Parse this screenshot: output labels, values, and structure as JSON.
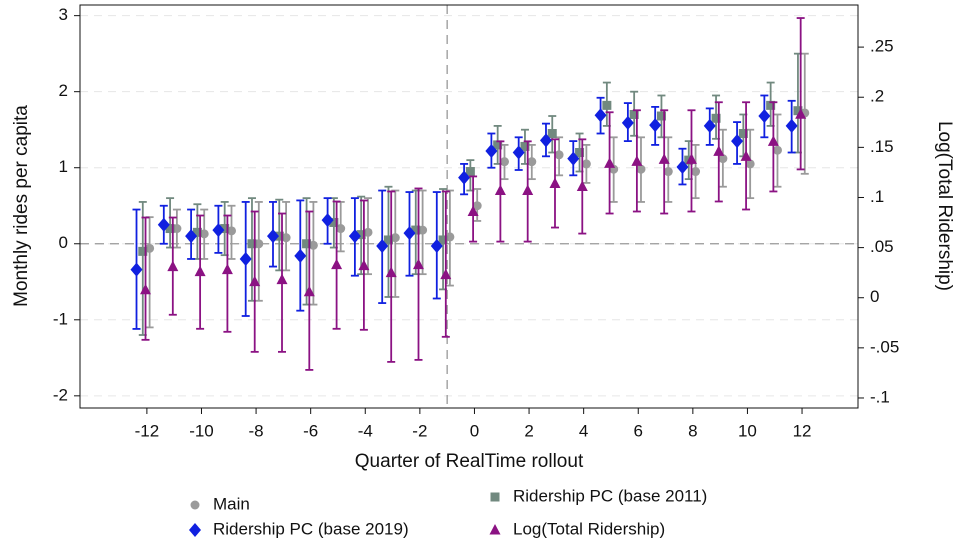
{
  "chart_data": {
    "type": "errorbar",
    "x_label": "Quarter of RealTime rollout",
    "y_label": "Monthly rides per capita",
    "y2_label": "Log(Total Ridership)",
    "x": [
      -12,
      -11,
      -10,
      -9,
      -8,
      -7,
      -6,
      -5,
      -4,
      -3,
      -2,
      -1,
      0,
      1,
      2,
      3,
      4,
      5,
      6,
      7,
      8,
      9,
      10,
      11,
      12
    ],
    "xlim": [
      -14.45,
      14.05
    ],
    "xticks": [
      -12,
      -10,
      -8,
      -6,
      -4,
      -2,
      0,
      2,
      4,
      6,
      8,
      10,
      12
    ],
    "ylim": [
      -2.16,
      3.14
    ],
    "yticks": [
      -2,
      -1,
      0,
      1,
      2,
      3
    ],
    "y2lim": [
      -0.11,
      0.292
    ],
    "y2ticks": [
      {
        "value": -0.1,
        "label": "-.1"
      },
      {
        "value": -0.05,
        "label": "-.05"
      },
      0,
      {
        "value": 0.05,
        "label": ".05"
      },
      {
        "value": 0.1,
        "label": ".1"
      },
      {
        "value": 0.15,
        "label": ".15"
      },
      {
        "value": 0.2,
        "label": ".2"
      },
      {
        "value": 0.25,
        "label": ".25"
      }
    ],
    "grid": true,
    "legend_position": "bottom",
    "series": [
      {
        "name": "Main",
        "color": "#9a9a9a",
        "marker": "circle",
        "values": [
          -0.06,
          0.2,
          0.13,
          0.17,
          0.0,
          0.08,
          -0.02,
          0.2,
          0.15,
          0.08,
          0.18,
          0.09,
          0.5,
          1.08,
          1.08,
          1.17,
          1.05,
          0.98,
          0.98,
          0.95,
          0.95,
          1.12,
          1.05,
          1.23,
          1.72
        ],
        "lower": [
          -1.1,
          -0.05,
          -0.2,
          -0.2,
          -0.75,
          -0.35,
          -0.8,
          -0.1,
          -0.4,
          -0.7,
          -0.4,
          -0.55,
          0.3,
          0.85,
          0.85,
          0.9,
          0.8,
          0.55,
          0.55,
          0.55,
          0.6,
          0.75,
          0.6,
          0.75,
          0.92
        ],
        "upper": [
          0.35,
          0.45,
          0.45,
          0.5,
          0.55,
          0.55,
          0.55,
          0.55,
          0.6,
          0.7,
          0.7,
          0.7,
          0.72,
          1.3,
          1.3,
          1.4,
          1.3,
          1.4,
          1.4,
          1.4,
          1.3,
          1.5,
          1.5,
          1.7,
          2.5
        ]
      },
      {
        "name": "Ridership PC (base 2011)",
        "color": "#71897f",
        "marker": "square",
        "values": [
          -0.1,
          0.2,
          0.15,
          0.2,
          0.0,
          0.1,
          0.0,
          0.28,
          0.12,
          0.05,
          0.18,
          0.05,
          0.95,
          1.3,
          1.28,
          1.45,
          1.2,
          1.82,
          1.7,
          1.68,
          1.1,
          1.65,
          1.45,
          1.82,
          1.75
        ],
        "lower": [
          -1.2,
          -0.05,
          -0.2,
          -0.15,
          -0.75,
          -0.35,
          -0.8,
          -0.05,
          -0.4,
          -0.7,
          -0.4,
          -0.6,
          0.7,
          1.05,
          1.05,
          1.2,
          0.95,
          1.55,
          1.42,
          1.4,
          0.85,
          1.38,
          1.15,
          1.55,
          1.2
        ],
        "upper": [
          0.55,
          0.6,
          0.52,
          0.55,
          0.6,
          0.58,
          0.6,
          0.6,
          0.62,
          0.75,
          0.7,
          0.72,
          1.1,
          1.55,
          1.5,
          1.68,
          1.45,
          2.12,
          2.0,
          1.95,
          1.35,
          1.95,
          1.7,
          2.12,
          2.5
        ]
      },
      {
        "name": "Ridership PC (base 2019)",
        "color": "#1020e0",
        "marker": "diamond",
        "values": [
          -0.34,
          0.25,
          0.1,
          0.18,
          -0.2,
          0.1,
          -0.16,
          0.31,
          0.1,
          -0.03,
          0.14,
          -0.03,
          0.87,
          1.22,
          1.2,
          1.36,
          1.12,
          1.69,
          1.59,
          1.56,
          1.01,
          1.55,
          1.35,
          1.68,
          1.55
        ],
        "lower": [
          -1.12,
          0.0,
          -0.2,
          -0.12,
          -0.95,
          -0.3,
          -0.88,
          0.0,
          -0.42,
          -0.78,
          -0.42,
          -0.72,
          0.65,
          1.0,
          0.97,
          1.15,
          0.9,
          1.45,
          1.35,
          1.3,
          0.78,
          1.3,
          1.05,
          1.4,
          1.2
        ],
        "upper": [
          0.45,
          0.5,
          0.45,
          0.5,
          0.55,
          0.55,
          0.57,
          0.6,
          0.6,
          0.7,
          0.68,
          0.68,
          1.05,
          1.45,
          1.4,
          1.58,
          1.35,
          1.92,
          1.85,
          1.8,
          1.25,
          1.78,
          1.6,
          1.95,
          1.88
        ]
      },
      {
        "name": "Log(Total Ridership)",
        "color": "#8b1283",
        "marker": "triangle",
        "axis": "y2",
        "values": [
          0.008,
          0.031,
          0.026,
          0.028,
          0.016,
          0.018,
          0.006,
          0.033,
          0.032,
          0.025,
          0.033,
          0.023,
          0.086,
          0.107,
          0.107,
          0.114,
          0.111,
          0.134,
          0.136,
          0.138,
          0.138,
          0.146,
          0.141,
          0.156,
          0.183
        ],
        "lower": [
          -0.042,
          -0.017,
          -0.031,
          -0.034,
          -0.054,
          -0.054,
          -0.072,
          -0.031,
          -0.032,
          -0.064,
          -0.062,
          -0.039,
          0.056,
          0.056,
          0.056,
          0.07,
          0.064,
          0.084,
          0.086,
          0.084,
          0.086,
          0.096,
          0.088,
          0.106,
          0.128
        ],
        "upper": [
          0.08,
          0.08,
          0.082,
          0.082,
          0.086,
          0.084,
          0.086,
          0.096,
          0.097,
          0.106,
          0.109,
          0.106,
          0.121,
          0.156,
          0.156,
          0.158,
          0.158,
          0.185,
          0.187,
          0.187,
          0.187,
          0.195,
          0.195,
          0.195,
          0.279
        ]
      }
    ]
  }
}
